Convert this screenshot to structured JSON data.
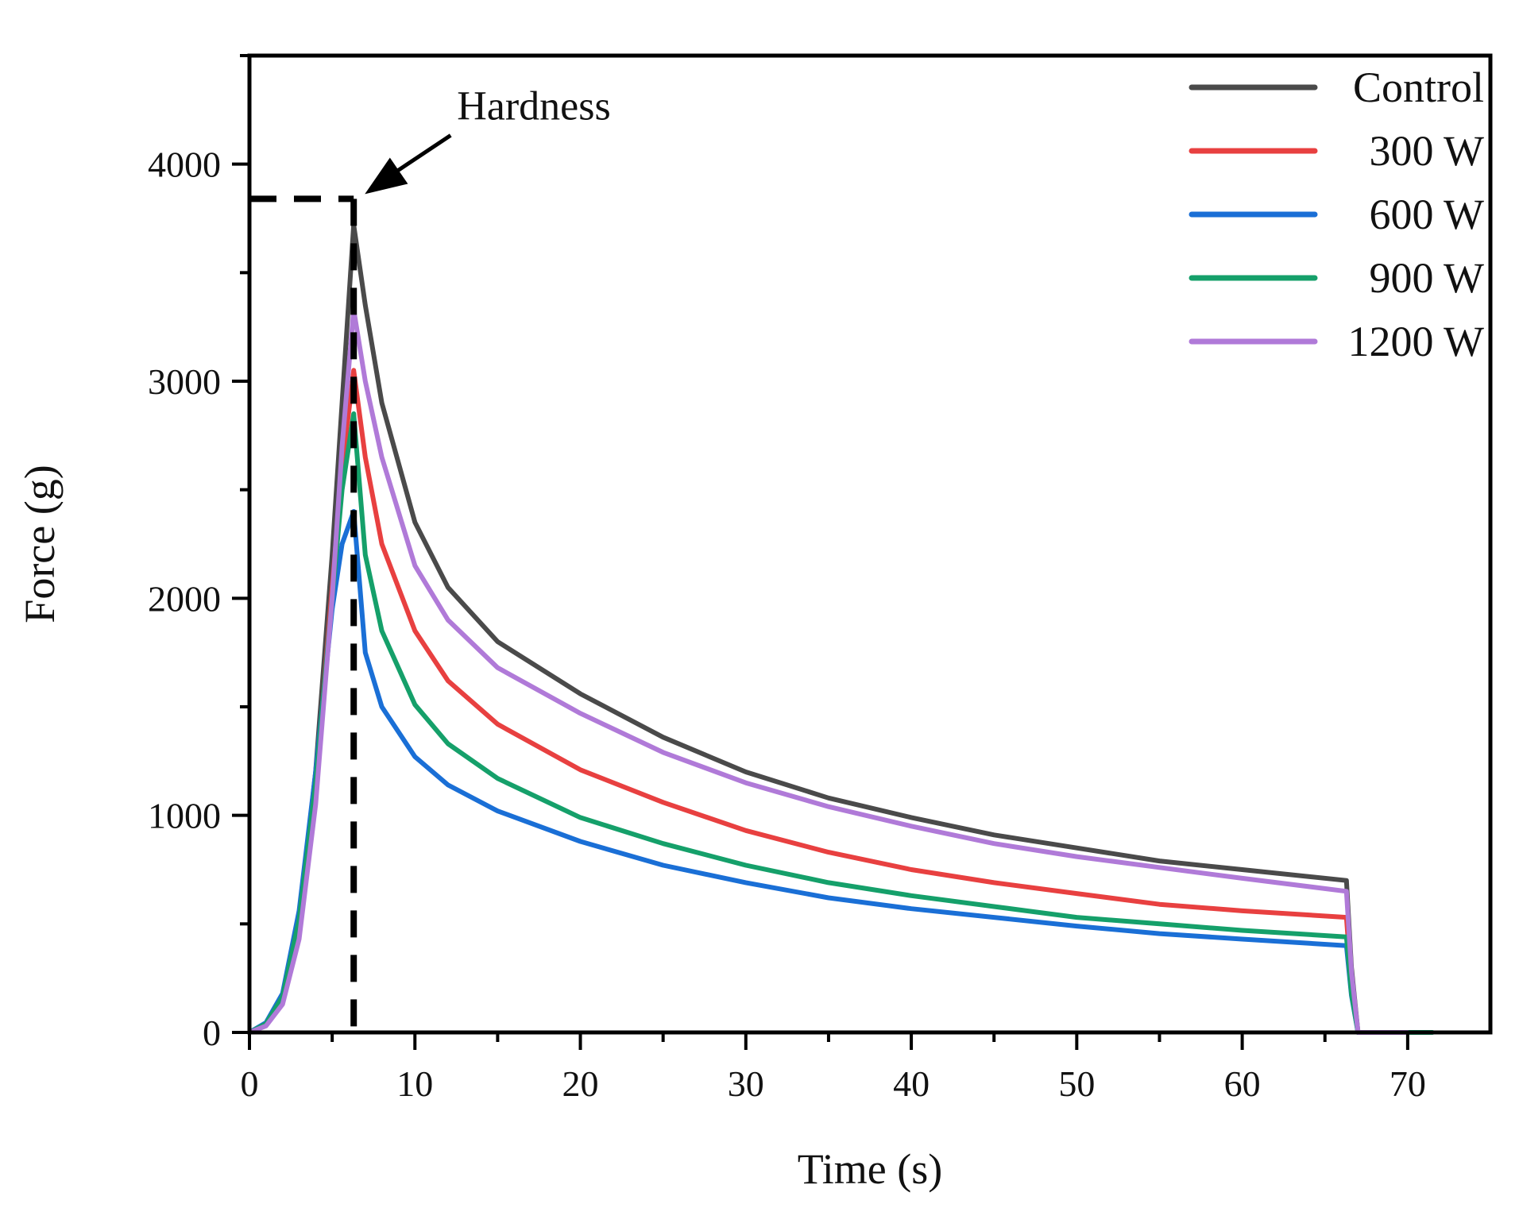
{
  "chart_data": {
    "type": "line",
    "title": "",
    "xlabel": "Time (s)",
    "ylabel": "Force (g)",
    "xlim": [
      0,
      75
    ],
    "ylim": [
      0,
      4500
    ],
    "xticks": [
      0,
      10,
      20,
      30,
      40,
      50,
      60,
      70
    ],
    "xtick_labels": [
      "0",
      "10",
      "20",
      "30",
      "40",
      "50",
      "60",
      "70"
    ],
    "yticks": [
      0,
      1000,
      2000,
      3000,
      4000
    ],
    "ytick_labels": [
      "0",
      "1000",
      "2000",
      "3000",
      "4000"
    ],
    "grid": false,
    "legend_position": "top-right",
    "annotation": {
      "text": "Hardness",
      "x": 6.3,
      "y": 3840
    },
    "series": [
      {
        "name": "Control",
        "color": "#4a4a4a",
        "x": [
          0,
          1,
          2,
          3,
          4,
          5,
          5.6,
          6.3,
          7,
          8,
          10,
          12,
          15,
          20,
          25,
          30,
          35,
          40,
          45,
          50,
          55,
          60,
          66.3,
          66.6,
          67,
          68,
          70
        ],
        "y": [
          0,
          40,
          170,
          520,
          1200,
          2200,
          2900,
          3720,
          3350,
          2900,
          2350,
          2050,
          1800,
          1560,
          1360,
          1200,
          1080,
          990,
          910,
          850,
          790,
          750,
          700,
          300,
          0,
          0,
          0
        ]
      },
      {
        "name": "300 W",
        "color": "#e84040",
        "x": [
          0,
          1,
          2,
          3,
          4,
          5,
          5.6,
          6.3,
          7,
          8,
          10,
          12,
          15,
          20,
          25,
          30,
          35,
          40,
          45,
          50,
          55,
          60,
          66.3,
          66.6,
          67,
          68,
          70
        ],
        "y": [
          0,
          35,
          150,
          480,
          1120,
          2050,
          2600,
          3050,
          2650,
          2250,
          1850,
          1620,
          1420,
          1210,
          1060,
          930,
          830,
          750,
          690,
          640,
          590,
          560,
          530,
          220,
          0,
          0,
          0
        ]
      },
      {
        "name": "600 W",
        "color": "#1a6fd6",
        "x": [
          0,
          1,
          2,
          3,
          4,
          5,
          5.6,
          6.3,
          7,
          8,
          10,
          12,
          15,
          20,
          25,
          30,
          35,
          40,
          45,
          50,
          55,
          60,
          66.3,
          66.6,
          67,
          68,
          70
        ],
        "y": [
          0,
          45,
          180,
          560,
          1200,
          1950,
          2250,
          2400,
          1750,
          1500,
          1270,
          1140,
          1020,
          880,
          770,
          690,
          620,
          570,
          530,
          490,
          455,
          430,
          400,
          170,
          0,
          0,
          0
        ]
      },
      {
        "name": "900 W",
        "color": "#15a06a",
        "x": [
          0,
          1,
          2,
          3,
          4,
          5,
          5.6,
          6.3,
          7,
          8,
          10,
          12,
          15,
          20,
          25,
          30,
          35,
          40,
          45,
          50,
          55,
          60,
          66.3,
          66.6,
          67,
          68,
          71.5
        ],
        "y": [
          0,
          40,
          165,
          520,
          1150,
          2000,
          2500,
          2850,
          2200,
          1850,
          1510,
          1330,
          1170,
          990,
          870,
          770,
          690,
          630,
          580,
          530,
          500,
          470,
          440,
          180,
          0,
          0,
          0
        ]
      },
      {
        "name": "1200 W",
        "color": "#b07ad8",
        "x": [
          0,
          1,
          2,
          3,
          4,
          5,
          5.6,
          6.3,
          7,
          8,
          10,
          12,
          15,
          20,
          25,
          30,
          35,
          40,
          45,
          50,
          55,
          60,
          66.3,
          66.6,
          67,
          68,
          70
        ],
        "y": [
          0,
          30,
          130,
          430,
          1050,
          2000,
          2700,
          3330,
          3000,
          2650,
          2150,
          1900,
          1680,
          1470,
          1290,
          1150,
          1040,
          950,
          870,
          810,
          760,
          710,
          650,
          280,
          0,
          0,
          0
        ]
      }
    ]
  }
}
